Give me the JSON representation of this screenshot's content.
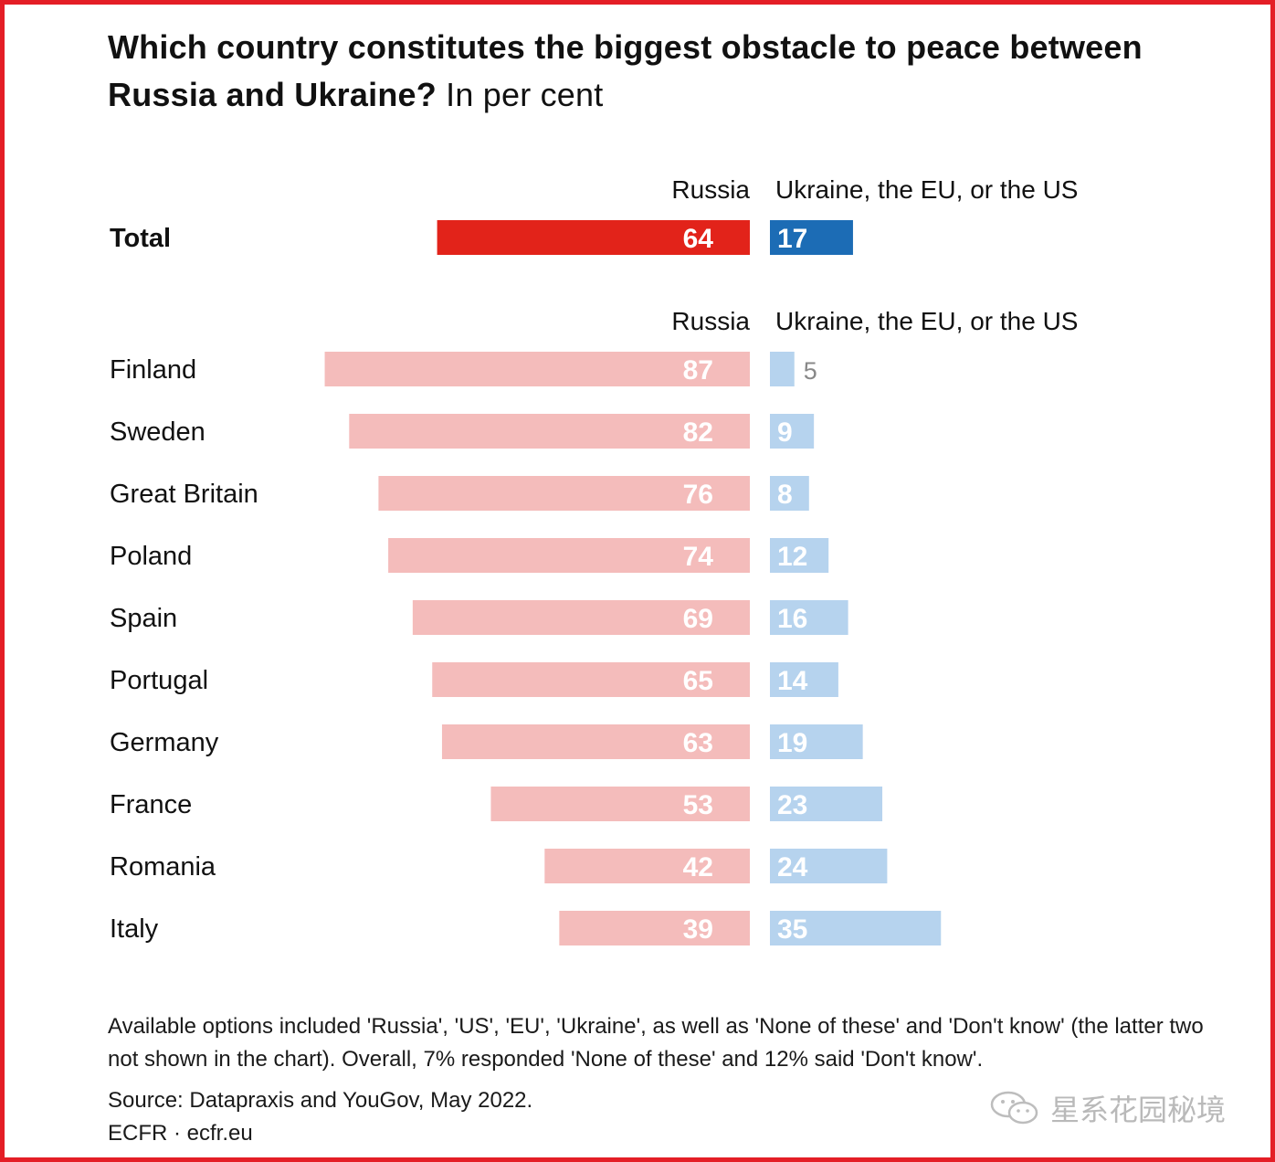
{
  "title": {
    "bold": "Which country constitutes the biggest obstacle to peace between Russia and Ukraine?",
    "unit": "In per cent"
  },
  "colors": {
    "frame": "#e41e26",
    "russia_total": "#e2231a",
    "ukraine_total": "#1c6cb5",
    "russia_country": "#f4bcbb",
    "ukraine_country": "#b6d3ee"
  },
  "chart_data": {
    "type": "bar",
    "series_names": [
      "Russia",
      "Ukraine, the EU, or the US"
    ],
    "total": {
      "category": "Total",
      "russia": 64,
      "ukraine_eu_us": 17
    },
    "categories": [
      "Finland",
      "Sweden",
      "Great Britain",
      "Poland",
      "Spain",
      "Portugal",
      "Germany",
      "France",
      "Romania",
      "Italy"
    ],
    "series": [
      {
        "name": "Russia",
        "values": [
          87,
          82,
          76,
          74,
          69,
          65,
          63,
          53,
          42,
          39
        ]
      },
      {
        "name": "Ukraine, the EU, or the US",
        "values": [
          5,
          9,
          8,
          12,
          16,
          14,
          19,
          23,
          24,
          35
        ]
      }
    ],
    "unit": "per cent"
  },
  "footnote": "Available options included 'Russia', 'US', 'EU', 'Ukraine', as well as 'None of these' and 'Don't know' (the latter two not shown in the chart). Overall, 7% responded 'None of these' and 12% said 'Don't know'.",
  "source": "Source: Datapraxis and YouGov, May 2022.",
  "brand": "ECFR · ecfr.eu",
  "watermark": {
    "icon": "wechat-icon",
    "text": "星系花园秘境"
  }
}
